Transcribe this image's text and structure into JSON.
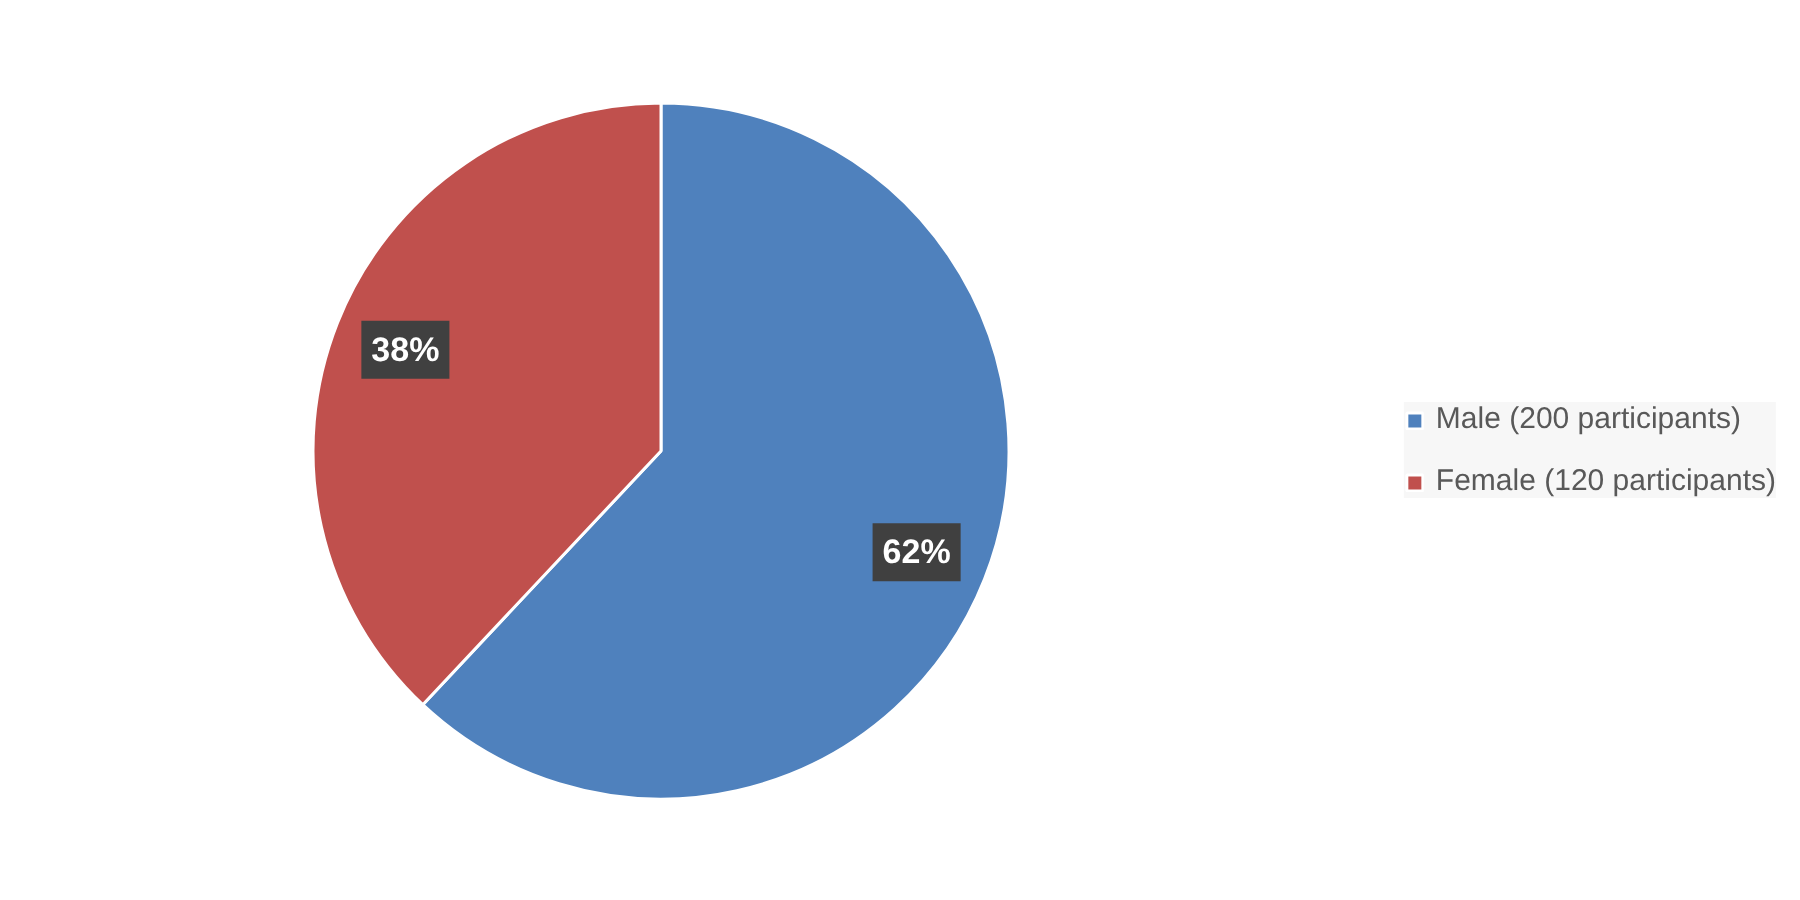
{
  "chart_data": {
    "type": "pie",
    "categories": [
      "Male (200 participants)",
      "Female (120 participants)"
    ],
    "values": [
      62,
      38
    ],
    "colors": [
      "#4f81bd",
      "#c0504d"
    ],
    "value_labels": [
      "62%",
      "38%"
    ],
    "legend": "right"
  }
}
